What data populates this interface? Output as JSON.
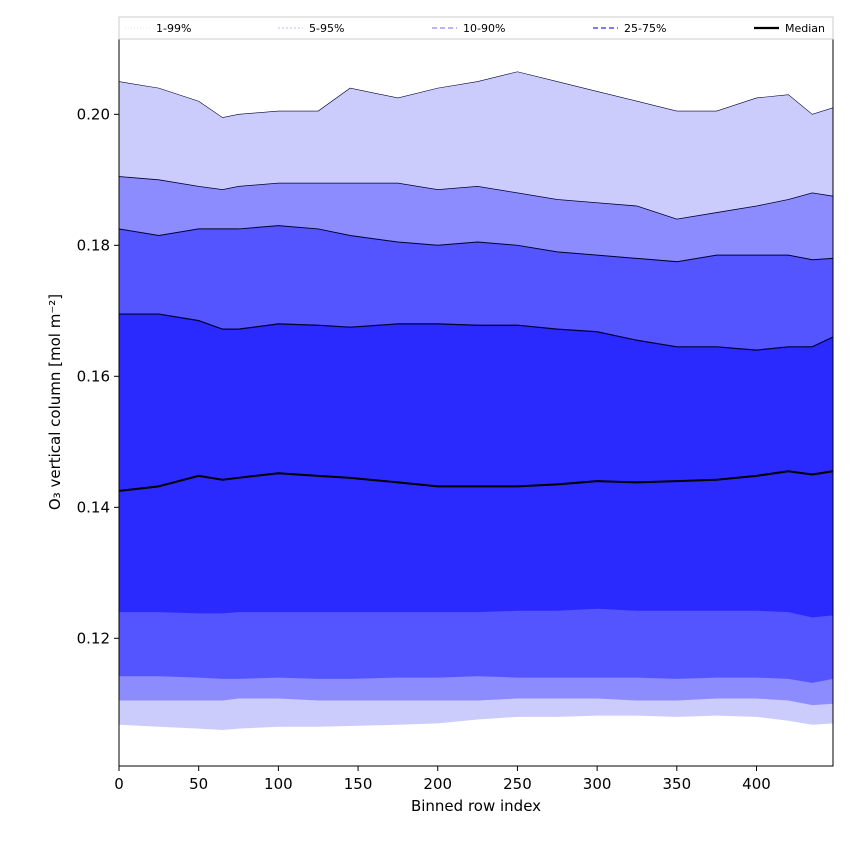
{
  "chart_data": {
    "type": "area",
    "title": "",
    "xlabel": "Binned row index",
    "ylabel": "O₃ vertical column [mol m⁻²]",
    "xlim": [
      0,
      448
    ],
    "ylim": [
      0.1005,
      0.2115
    ],
    "x_ticks": [
      0,
      50,
      100,
      150,
      200,
      250,
      300,
      350,
      400
    ],
    "y_ticks": [
      0.12,
      0.14,
      0.16,
      0.18,
      0.2
    ],
    "y_tick_labels": [
      "0.12",
      "0.14",
      "0.16",
      "0.18",
      "0.20"
    ],
    "grid": false,
    "legend_position": "top",
    "legend": [
      {
        "label": "1-99%",
        "style": "thin-dotted",
        "color": "#d6d6f5"
      },
      {
        "label": "5-95%",
        "style": "thin-dashed",
        "color": "#a6a6ee"
      },
      {
        "label": "10-90%",
        "style": "dashed",
        "color": "#8b8bf2"
      },
      {
        "label": "25-75%",
        "style": "dashed",
        "color": "#5353e8"
      },
      {
        "label": "Median",
        "style": "solid",
        "color": "#000000"
      }
    ],
    "x": [
      0,
      25,
      50,
      65,
      75,
      100,
      125,
      145,
      175,
      200,
      225,
      250,
      275,
      300,
      325,
      350,
      375,
      400,
      420,
      435,
      448
    ],
    "series": [
      {
        "name": "1-99%",
        "color": "#ccccfc",
        "lower": [
          0.1068,
          0.1065,
          0.1062,
          0.106,
          0.1062,
          0.1065,
          0.1065,
          0.1066,
          0.1068,
          0.107,
          0.1076,
          0.108,
          0.108,
          0.1082,
          0.1082,
          0.108,
          0.1082,
          0.108,
          0.1074,
          0.1068,
          0.107
        ],
        "upper": [
          0.205,
          0.204,
          0.202,
          0.1995,
          0.2,
          0.2005,
          0.2005,
          0.204,
          0.2025,
          0.204,
          0.205,
          0.2065,
          0.205,
          0.2035,
          0.202,
          0.2005,
          0.2005,
          0.2025,
          0.203,
          0.2,
          0.201
        ]
      },
      {
        "name": "5-95%",
        "color": "#8c8cff",
        "lower": [
          0.1105,
          0.1105,
          0.1105,
          0.1105,
          0.1108,
          0.1108,
          0.1105,
          0.1105,
          0.1105,
          0.1105,
          0.1105,
          0.1108,
          0.1108,
          0.1108,
          0.1105,
          0.1105,
          0.1108,
          0.1108,
          0.1105,
          0.1098,
          0.11
        ],
        "upper": [
          0.1905,
          0.19,
          0.189,
          0.1885,
          0.189,
          0.1895,
          0.1895,
          0.1895,
          0.1895,
          0.1885,
          0.189,
          0.188,
          0.187,
          0.1865,
          0.186,
          0.184,
          0.185,
          0.186,
          0.187,
          0.188,
          0.1875
        ]
      },
      {
        "name": "10-90%",
        "color": "#5555ff",
        "lower": [
          0.1142,
          0.1142,
          0.114,
          0.1138,
          0.1138,
          0.114,
          0.1138,
          0.1138,
          0.114,
          0.114,
          0.1142,
          0.114,
          0.114,
          0.114,
          0.114,
          0.1138,
          0.114,
          0.114,
          0.1138,
          0.1132,
          0.1138
        ],
        "upper": [
          0.1825,
          0.1815,
          0.1825,
          0.1825,
          0.1825,
          0.183,
          0.1825,
          0.1815,
          0.1805,
          0.18,
          0.1805,
          0.18,
          0.179,
          0.1785,
          0.178,
          0.1775,
          0.1785,
          0.1785,
          0.1785,
          0.1778,
          0.178
        ]
      },
      {
        "name": "25-75%",
        "color": "#2a2aff",
        "lower": [
          0.124,
          0.124,
          0.1238,
          0.1238,
          0.124,
          0.124,
          0.124,
          0.124,
          0.124,
          0.124,
          0.124,
          0.1242,
          0.1242,
          0.1245,
          0.1242,
          0.1242,
          0.1242,
          0.1242,
          0.124,
          0.1232,
          0.1235
        ],
        "upper": [
          0.1695,
          0.1695,
          0.1685,
          0.1672,
          0.1672,
          0.168,
          0.1678,
          0.1675,
          0.168,
          0.168,
          0.1678,
          0.1678,
          0.1672,
          0.1668,
          0.1655,
          0.1645,
          0.1645,
          0.164,
          0.1645,
          0.1645,
          0.166
        ]
      },
      {
        "name": "Median",
        "color": "#000000",
        "values": [
          0.1425,
          0.1432,
          0.1448,
          0.1442,
          0.1445,
          0.1452,
          0.1448,
          0.1445,
          0.1438,
          0.1432,
          0.1432,
          0.1432,
          0.1435,
          0.144,
          0.1438,
          0.144,
          0.1442,
          0.1448,
          0.1455,
          0.145,
          0.1455
        ]
      }
    ]
  }
}
